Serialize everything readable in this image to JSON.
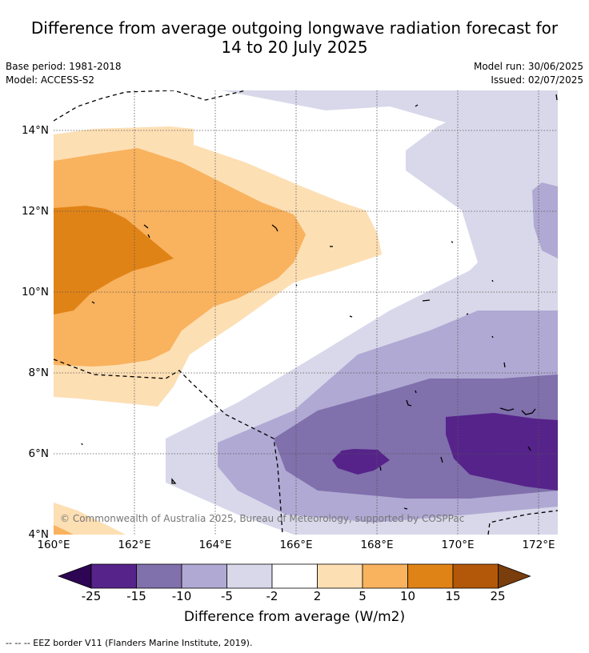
{
  "title_line1": "Difference from average outgoing longwave radiation forecast for",
  "title_line2": "14 to 20 July 2025",
  "base_period": "Base period: 1981-2018",
  "model": "Model: ACCESS-S2",
  "model_run": "Model run: 30/06/2025",
  "issued": "Issued: 02/07/2025",
  "copyright": "© Commonwealth of Australia 2025, Bureau of Meteorology, supported by COSPPac",
  "lat_labels": [
    "14°N",
    "12°N",
    "10°N",
    "8°N",
    "6°N",
    "4°N"
  ],
  "lon_labels": [
    "160°E",
    "162°E",
    "164°E",
    "166°E",
    "168°E",
    "170°E",
    "172°E"
  ],
  "colorbar": {
    "labels": [
      "-25",
      "-15",
      "-10",
      "-5",
      "-2",
      "2",
      "5",
      "10",
      "15",
      "25"
    ],
    "title": "Difference from average (W/m2)",
    "colors": [
      "#2e0554",
      "#56238a",
      "#8070ac",
      "#b0a9d3",
      "#d8d8ea",
      "#ffffff",
      "#fddfb4",
      "#f9b25e",
      "#e08316",
      "#b35808",
      "#7a3d0c"
    ]
  },
  "footnote": "--  --  -- EEZ border V11 (Flanders Marine Institute, 2019)."
}
